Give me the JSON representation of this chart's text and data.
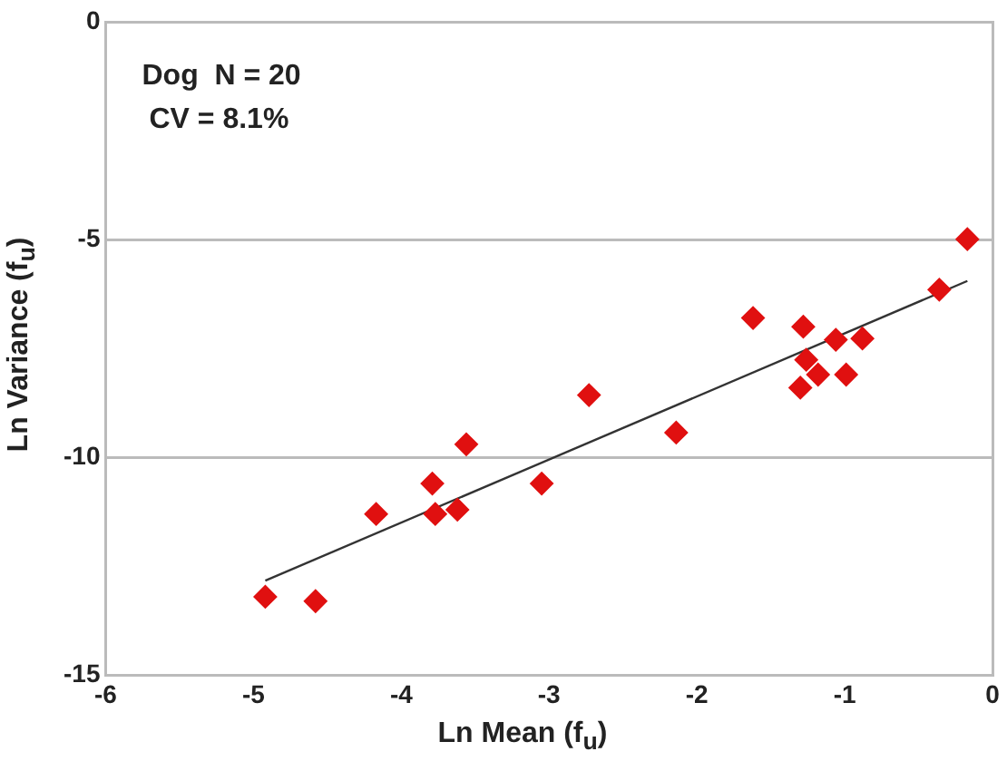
{
  "chart_data": {
    "type": "scatter",
    "xlabel": "Ln Mean (f$_{u}$)",
    "ylabel": "Ln Variance (f$_{u}$)",
    "annotations": [
      "Dog  N = 20",
      "CV = 8.1%"
    ],
    "xlim": [
      -6,
      0
    ],
    "xticks": [
      -6,
      -5,
      -4,
      -3,
      -2,
      -1,
      0
    ],
    "ylim": [
      -15,
      0
    ],
    "yticks": [
      -15,
      -10,
      -5,
      0
    ],
    "grid": "y",
    "marker": "diamond",
    "series": [
      {
        "color": "#e01010",
        "x": [
          -4.92,
          -4.58,
          -4.17,
          -3.79,
          -3.77,
          -3.62,
          -3.56,
          -3.05,
          -2.73,
          -2.14,
          -1.62,
          -1.28,
          -1.06,
          -0.88,
          -1.26,
          -1.18,
          -0.99,
          -1.3,
          -0.36,
          -0.17
        ],
        "values": [
          -13.2,
          -13.3,
          -11.3,
          -10.6,
          -11.3,
          -11.2,
          -9.7,
          -10.6,
          -8.57,
          -9.43,
          -6.8,
          -7.0,
          -7.3,
          -7.27,
          -7.76,
          -8.1,
          -8.1,
          -8.4,
          -6.15,
          -4.99
        ]
      },
      {
        "type": "line",
        "color": "#333333",
        "marker": "none",
        "x": [
          -4.92,
          -0.17
        ],
        "values": [
          -12.83,
          -5.95
        ]
      }
    ]
  }
}
